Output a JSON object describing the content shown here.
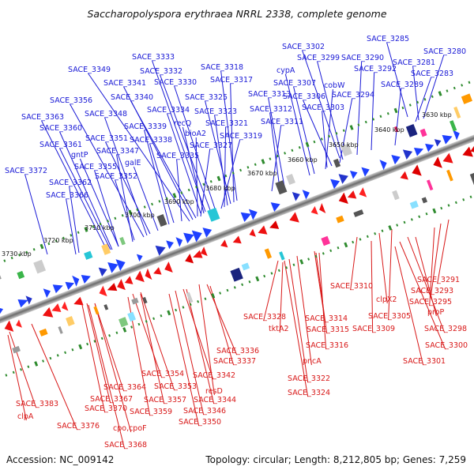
{
  "title": "Saccharopolyspora erythraea NRRL 2338, complete genome",
  "accession": "Accession: NC_009142",
  "summary": "Topology: circular; Length: 8,212,805 bp; Genes: 7,259",
  "colors": {
    "forward_label": "#1a1ad6",
    "reverse_label": "#d81818",
    "backbone": "#7a7a7a",
    "tick_track": "#2e8b2e"
  },
  "kbp_ticks": [
    "3630 kbp",
    "3640 kbp",
    "3650 kbp",
    "3660 kbp",
    "3670 kbp",
    "3680 kbp",
    "3690 kbp",
    "3700 kbp",
    "3710 kbp",
    "3720 kbp",
    "3730 kbp"
  ],
  "forward_genes": [
    "SACE_3285",
    "SACE_3280",
    "SACE_3281",
    "SACE_3283",
    "SACE_3302",
    "SACE_3299",
    "SACE_3290",
    "SACE_3292",
    "SACE_3289",
    "cypA",
    "SACE_3307",
    "cobW",
    "SACE_3294",
    "SACE_3306",
    "SACE_3303",
    "SACE_3313",
    "SACE_3312",
    "SACE_3311",
    "SACE_3318",
    "SACE_3317",
    "SACE_3333",
    "SACE_3332",
    "SACE_3330",
    "SACE_3349",
    "SACE_3341",
    "SACE_3340",
    "SACE_3325",
    "SACE_3323",
    "SACE_3321",
    "SACE_3319",
    "SACE_3334",
    "recQ",
    "SACE_3356",
    "SACE_3348",
    "SACE_3339",
    "bioA2",
    "SACE_3327",
    "SACE_3363",
    "SACE_3360",
    "SACE_3351",
    "SACE_3338",
    "SACE_3361",
    "SACE_3347",
    "galE",
    "SACE_3335",
    "gntP",
    "SACE_3355",
    "SACE_3352",
    "SACE_3372",
    "SACE_3362",
    "SACE_3366"
  ],
  "reverse_genes": [
    "SACE_3291",
    "SACE_3293",
    "SACE_3295",
    "proP",
    "SACE_3310",
    "clpX2",
    "SACE_3305",
    "SACE_3309",
    "SACE_3298",
    "SACE_3300",
    "SACE_3301",
    "SACE_3314",
    "SACE_3315",
    "SACE_3328",
    "tktA2",
    "SACE_3316",
    "pncA",
    "SACE_3322",
    "SACE_3324",
    "SACE_3336",
    "SACE_3337",
    "SACE_3342",
    "SACE_3354",
    "SACE_3353",
    "resD",
    "SACE_3344",
    "SACE_3346",
    "SACE_3350",
    "SACE_3357",
    "SACE_3359",
    "SACE_3364",
    "SACE_3367",
    "SACE_3370",
    "cpo,cpoF",
    "SACE_3368",
    "SACE_3383",
    "clpA",
    "SACE_3376"
  ]
}
